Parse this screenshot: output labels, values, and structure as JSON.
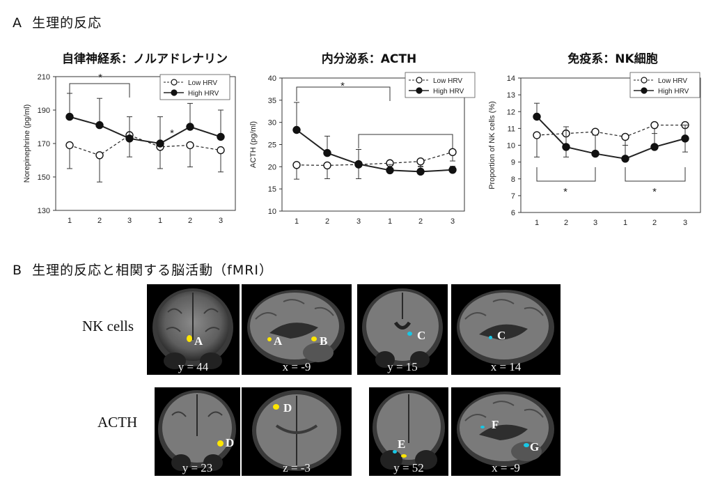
{
  "section_a": {
    "label": "A",
    "title": "生理的反応"
  },
  "section_b": {
    "label": "B",
    "title": "生理的反応と相関する脳活動（fMRI）"
  },
  "chart_data": [
    {
      "type": "line",
      "title": "自律神経系：ノルアドレナリン",
      "ylabel": "Norepinephrine (pg/ml)",
      "categories": [
        "1",
        "2",
        "3",
        "1",
        "2",
        "3"
      ],
      "yticks": [
        "130",
        "150",
        "170",
        "190",
        "210"
      ],
      "ylim": [
        130,
        210
      ],
      "legend": {
        "position": "top-right",
        "entries": [
          "Low HRV",
          "High HRV"
        ]
      },
      "series": [
        {
          "name": "Low HRV",
          "values": [
            169,
            163,
            175,
            168,
            169,
            166
          ],
          "errors": [
            14,
            16,
            13,
            13,
            13,
            13
          ],
          "marker": "open-circle",
          "line": "dashed"
        },
        {
          "name": "High HRV",
          "values": [
            186,
            181,
            173,
            170,
            180,
            174
          ],
          "errors": [
            14,
            16,
            13,
            16,
            14,
            16
          ],
          "marker": "filled-circle",
          "line": "solid"
        }
      ],
      "annotations": [
        "*",
        "*"
      ]
    },
    {
      "type": "line",
      "title": "内分泌系：ACTH",
      "ylabel": "ACTH (pg/ml)",
      "categories": [
        "1",
        "2",
        "3",
        "1",
        "2",
        "3"
      ],
      "yticks": [
        "10",
        "15",
        "20",
        "25",
        "30",
        "35",
        "40"
      ],
      "ylim": [
        10,
        40
      ],
      "legend": {
        "position": "top-right",
        "entries": [
          "Low HRV",
          "High HRV"
        ]
      },
      "series": [
        {
          "name": "Low HRV",
          "values": [
            20.4,
            20.3,
            20.5,
            20.8,
            21.2,
            23.3
          ],
          "errors": [
            3.2,
            3.0,
            3.2,
            1.2,
            1.2,
            2.0
          ],
          "marker": "open-circle",
          "line": "dashed"
        },
        {
          "name": "High HRV",
          "values": [
            28.3,
            23.1,
            20.6,
            19.2,
            18.9,
            19.3
          ],
          "errors": [
            6.2,
            3.8,
            3.3,
            1.3,
            1.2,
            0.8
          ],
          "marker": "filled-circle",
          "line": "solid"
        }
      ],
      "annotations": [
        "*"
      ]
    },
    {
      "type": "line",
      "title": "免疫系：NK細胞",
      "ylabel": "Proportion of NK cells (%)",
      "categories": [
        "1",
        "2",
        "3",
        "1",
        "2",
        "3"
      ],
      "yticks": [
        "6",
        "7",
        "8",
        "9",
        "10",
        "11",
        "12",
        "13",
        "14"
      ],
      "ylim": [
        6,
        14
      ],
      "legend": {
        "position": "top-right",
        "entries": [
          "Low HRV",
          "High HRV"
        ]
      },
      "series": [
        {
          "name": "Low HRV",
          "values": [
            10.6,
            10.7,
            10.8,
            10.5,
            11.2,
            11.2
          ],
          "errors": [
            1.3,
            1.4,
            1.4,
            1.2,
            1.2,
            1.6
          ],
          "marker": "open-circle",
          "line": "dashed"
        },
        {
          "name": "High HRV",
          "values": [
            11.7,
            9.9,
            9.5,
            9.2,
            9.9,
            10.4
          ],
          "errors": [
            0.8,
            1.2,
            1.1,
            0.8,
            0.8,
            0.8
          ],
          "marker": "filled-circle",
          "line": "solid"
        }
      ],
      "annotations": [
        "*",
        "*"
      ]
    }
  ],
  "fmri": {
    "rows": [
      {
        "label": "NK cells",
        "panels": [
          {
            "coord": "y = 44",
            "regions": [
              "A"
            ]
          },
          {
            "coord": "x = -9",
            "regions": [
              "A",
              "B"
            ]
          },
          {
            "coord": "y = 15",
            "regions": [
              "C"
            ]
          },
          {
            "coord": "x = 14",
            "regions": [
              "C"
            ]
          }
        ]
      },
      {
        "label": "ACTH",
        "panels": [
          {
            "coord": "y = 23",
            "regions": [
              "D"
            ]
          },
          {
            "coord": "z = -3",
            "regions": [
              "D"
            ]
          },
          {
            "coord": "y = 52",
            "regions": [
              "E"
            ]
          },
          {
            "coord": "x = -9",
            "regions": [
              "F",
              "G"
            ]
          }
        ]
      }
    ],
    "colors": {
      "positive": "#ffe600",
      "negative": "#17c8e6"
    }
  }
}
